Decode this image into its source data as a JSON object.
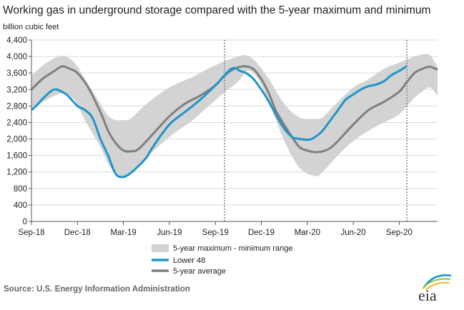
{
  "chart_data": {
    "type": "line",
    "title": "Working gas in underground storage compared with the 5-year maximum and minimum",
    "ylabel": "billion cubic feet",
    "ylim": [
      0,
      4400
    ],
    "yticks": [
      0,
      400,
      800,
      1200,
      1600,
      2000,
      2400,
      2800,
      3200,
      3600,
      4000,
      4400
    ],
    "ytick_labels": [
      "0",
      "400",
      "800",
      "1,200",
      "1,600",
      "2,000",
      "2,400",
      "2,800",
      "3,200",
      "3,600",
      "4,000",
      "4,400"
    ],
    "x_unit": "months since Sep-18",
    "xlim": [
      0,
      26.5
    ],
    "xticks": [
      0,
      3,
      6,
      9,
      12,
      15,
      18,
      21,
      24
    ],
    "xtick_labels": [
      "Sep-18",
      "Dec-18",
      "Mar-19",
      "Jun-19",
      "Sep-19",
      "Dec-19",
      "Mar-20",
      "Jun-20",
      "Sep-20"
    ],
    "vlines": [
      12.6,
      24.5
    ],
    "grid": "horizontal",
    "legend_position": "bottom-center",
    "colors": {
      "range": "#d3d3d3",
      "lower48": "#1f95c8",
      "average": "#7f7f7f",
      "axis": "#555555",
      "grid": "#d9d9d9"
    },
    "range": {
      "name": "5-year maximum - minimum range",
      "x": [
        0,
        1,
        2,
        2.8,
        3.5,
        4.5,
        5,
        5.5,
        6,
        6.5,
        7.5,
        9,
        10.5,
        11.5,
        12.5,
        13.5,
        14.1,
        14.7,
        15.5,
        16.5,
        17.5,
        18.5,
        19,
        20,
        21,
        22,
        23,
        24,
        25,
        25.5,
        26,
        26.5
      ],
      "max": [
        3540,
        3850,
        4020,
        3850,
        3450,
        2850,
        2560,
        2460,
        2460,
        2500,
        2850,
        3250,
        3500,
        3700,
        3870,
        4000,
        4020,
        3850,
        3450,
        2850,
        2520,
        2490,
        2530,
        2900,
        3250,
        3450,
        3700,
        3850,
        4000,
        4050,
        4030,
        3750
      ],
      "min": [
        2700,
        2950,
        3100,
        2950,
        2450,
        1800,
        1400,
        1150,
        1100,
        1200,
        1550,
        2050,
        2450,
        2780,
        3100,
        3400,
        3650,
        3500,
        2900,
        1950,
        1300,
        1100,
        1200,
        1600,
        1950,
        2200,
        2400,
        2600,
        3000,
        3150,
        3250,
        3050
      ]
    },
    "series": [
      {
        "name": "Lower 48",
        "x": [
          0,
          0.3,
          0.8,
          1.5,
          2.2,
          2.5,
          3,
          3.5,
          4,
          4.5,
          5,
          5.5,
          6,
          6.5,
          7,
          7.5,
          8,
          9,
          10,
          11,
          12,
          12.5,
          13,
          13.3,
          13.6,
          14,
          14.5,
          15,
          15.5,
          16,
          16.5,
          17,
          17.5,
          18,
          18.3,
          18.7,
          19,
          19.5,
          20,
          20.5,
          21,
          21.5,
          22,
          22.5,
          23,
          23.5,
          24,
          24.5
        ],
        "values": [
          2700,
          2800,
          3000,
          3200,
          3100,
          3000,
          2800,
          2700,
          2500,
          2000,
          1600,
          1150,
          1080,
          1180,
          1350,
          1550,
          1850,
          2350,
          2650,
          2950,
          3300,
          3500,
          3690,
          3720,
          3650,
          3600,
          3450,
          3200,
          2900,
          2550,
          2250,
          2050,
          2000,
          1980,
          2000,
          2100,
          2200,
          2450,
          2700,
          2950,
          3080,
          3200,
          3280,
          3320,
          3400,
          3550,
          3650,
          3770
        ]
      },
      {
        "name": "5-year average",
        "x": [
          0,
          0.7,
          1.5,
          2,
          2.5,
          3,
          3.7,
          4.5,
          5,
          5.5,
          6,
          6.5,
          7,
          8,
          9,
          10,
          11,
          12,
          12.5,
          13,
          13.5,
          14,
          14.5,
          15,
          15.5,
          16,
          17,
          17.5,
          18,
          18.5,
          19,
          19.5,
          20,
          21,
          22,
          23,
          24,
          24.5,
          25,
          25.5,
          26,
          26.5
        ],
        "values": [
          3200,
          3450,
          3650,
          3760,
          3700,
          3600,
          3250,
          2650,
          2200,
          1900,
          1720,
          1700,
          1760,
          2150,
          2550,
          2850,
          3050,
          3300,
          3500,
          3650,
          3740,
          3760,
          3690,
          3450,
          3100,
          2650,
          2050,
          1800,
          1720,
          1680,
          1700,
          1780,
          1950,
          2350,
          2700,
          2900,
          3150,
          3380,
          3600,
          3700,
          3750,
          3680
        ]
      }
    ]
  },
  "source_text": "Source:  U.S. Energy Information Administration",
  "logo_text": "eia"
}
